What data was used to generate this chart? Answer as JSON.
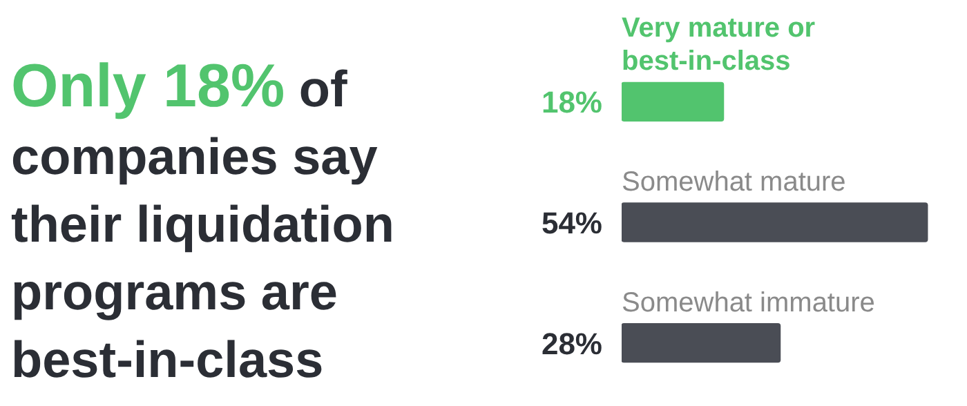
{
  "chart_data": {
    "type": "bar",
    "orientation": "horizontal",
    "title": "Only 18%",
    "subtitle": "of companies say their liquidation programs are best-in-class",
    "categories": [
      "Very mature or best-in-class",
      "Somewhat mature",
      "Somewhat immature"
    ],
    "values": [
      18,
      54,
      28
    ],
    "colors": [
      "#52c46e",
      "#4a4d55",
      "#4a4d55"
    ],
    "value_labels": [
      "18%",
      "54%",
      "28%"
    ],
    "grid": false,
    "legend": false,
    "tick_labels": false
  }
}
